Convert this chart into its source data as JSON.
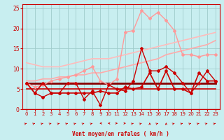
{
  "xlabel": "Vent moyen/en rafales ( km/h )",
  "xlim": [
    -0.5,
    23.5
  ],
  "ylim": [
    0,
    26
  ],
  "yticks": [
    0,
    5,
    10,
    15,
    20,
    25
  ],
  "xticks": [
    0,
    1,
    2,
    3,
    4,
    5,
    6,
    7,
    8,
    9,
    10,
    11,
    12,
    13,
    14,
    15,
    16,
    17,
    18,
    19,
    20,
    21,
    22,
    23
  ],
  "bg_color": "#c8eef0",
  "grid_color": "#a0cccc",
  "axis_color": "#cc0000",
  "tick_color": "#cc0000",
  "xlabel_color": "#cc0000",
  "series": [
    {
      "x": [
        0,
        1,
        2,
        3,
        4,
        5,
        6,
        7,
        8,
        9,
        10,
        11,
        12,
        13,
        14,
        15,
        16,
        17,
        18,
        19,
        20,
        21,
        22,
        23
      ],
      "y": [
        6.5,
        4.0,
        6.5,
        4.0,
        4.0,
        4.0,
        4.0,
        4.0,
        4.0,
        4.5,
        4.0,
        4.0,
        5.5,
        5.0,
        5.5,
        9.0,
        5.0,
        9.5,
        5.0,
        5.0,
        4.0,
        9.0,
        7.0,
        7.0
      ],
      "color": "#cc0000",
      "lw": 1.2,
      "marker": "D",
      "ms": 2.0,
      "zorder": 5
    },
    {
      "x": [
        0,
        1,
        2,
        3,
        4,
        5,
        6,
        7,
        8,
        9,
        10,
        11,
        12,
        13,
        14,
        15,
        16,
        17,
        18,
        19,
        20,
        21,
        22,
        23
      ],
      "y": [
        6.5,
        6.5,
        6.5,
        6.5,
        6.5,
        6.5,
        6.5,
        6.5,
        6.5,
        6.5,
        6.5,
        6.5,
        6.5,
        6.5,
        6.5,
        6.5,
        6.5,
        6.5,
        6.5,
        6.5,
        6.5,
        6.5,
        6.5,
        6.5
      ],
      "color": "#880000",
      "lw": 2.0,
      "marker": null,
      "ms": 0,
      "zorder": 4
    },
    {
      "x": [
        0,
        1,
        2,
        3,
        4,
        5,
        6,
        7,
        8,
        9,
        10,
        11,
        12,
        13,
        14,
        15,
        16,
        17,
        18,
        19,
        20,
        21,
        22,
        23
      ],
      "y": [
        6.5,
        4.0,
        3.0,
        4.0,
        4.0,
        6.5,
        6.5,
        2.5,
        4.5,
        1.0,
        6.0,
        5.0,
        4.5,
        7.0,
        15.0,
        9.5,
        9.5,
        10.5,
        9.0,
        6.5,
        4.0,
        6.5,
        9.5,
        7.0
      ],
      "color": "#cc0000",
      "lw": 1.0,
      "marker": "D",
      "ms": 2.0,
      "zorder": 5
    },
    {
      "x": [
        0,
        1,
        2,
        3,
        4,
        5,
        6,
        7,
        8,
        9,
        10,
        11,
        12,
        13,
        14,
        15,
        16,
        17,
        18,
        19,
        20,
        21,
        22,
        23
      ],
      "y": [
        5.0,
        5.0,
        5.0,
        5.0,
        5.0,
        5.0,
        5.0,
        5.0,
        5.0,
        5.0,
        5.0,
        5.0,
        5.0,
        5.0,
        5.0,
        5.0,
        5.0,
        5.0,
        5.0,
        5.0,
        5.0,
        5.0,
        5.0,
        5.0
      ],
      "color": "#cc0000",
      "lw": 1.2,
      "marker": null,
      "ms": 0,
      "zorder": 3
    },
    {
      "x": [
        0,
        1,
        2,
        3,
        4,
        5,
        6,
        7,
        8,
        9,
        10,
        11,
        12,
        13,
        14,
        15,
        16,
        17,
        18,
        19,
        20,
        21,
        22,
        23
      ],
      "y": [
        7.0,
        7.0,
        7.5,
        7.5,
        8.0,
        8.0,
        8.5,
        8.5,
        9.0,
        9.0,
        9.5,
        10.0,
        10.5,
        11.0,
        11.5,
        12.0,
        12.5,
        13.5,
        14.0,
        14.5,
        15.0,
        15.5,
        16.0,
        17.0
      ],
      "color": "#ffaaaa",
      "lw": 1.2,
      "marker": null,
      "ms": 0,
      "zorder": 3
    },
    {
      "x": [
        0,
        1,
        2,
        3,
        4,
        5,
        6,
        7,
        8,
        9,
        10,
        11,
        12,
        13,
        14,
        15,
        16,
        17,
        18,
        19,
        20,
        21,
        22,
        23
      ],
      "y": [
        11.5,
        11.0,
        10.5,
        10.5,
        10.5,
        11.0,
        11.5,
        12.0,
        12.5,
        12.5,
        12.5,
        13.0,
        13.5,
        14.0,
        14.5,
        15.0,
        15.5,
        16.0,
        16.5,
        17.0,
        17.5,
        18.0,
        18.5,
        19.0
      ],
      "color": "#ffbbbb",
      "lw": 1.2,
      "marker": null,
      "ms": 0,
      "zorder": 3
    },
    {
      "x": [
        0,
        1,
        2,
        3,
        4,
        5,
        6,
        7,
        8,
        9,
        10,
        11,
        12,
        13,
        14,
        15,
        16,
        17,
        18,
        19,
        20,
        21,
        22,
        23
      ],
      "y": [
        6.5,
        5.5,
        6.0,
        7.0,
        7.5,
        8.0,
        8.5,
        9.5,
        10.5,
        7.0,
        6.0,
        7.5,
        19.0,
        19.5,
        24.5,
        22.5,
        24.0,
        22.0,
        19.5,
        13.5,
        13.5,
        13.0,
        13.5,
        13.5
      ],
      "color": "#ff9999",
      "lw": 1.0,
      "marker": "D",
      "ms": 2.0,
      "zorder": 4
    }
  ],
  "wind_directions": [
    45,
    45,
    45,
    45,
    45,
    45,
    45,
    45,
    45,
    180,
    180,
    90,
    90,
    45,
    45,
    0,
    45,
    0,
    45,
    45,
    45,
    45,
    45,
    45
  ]
}
